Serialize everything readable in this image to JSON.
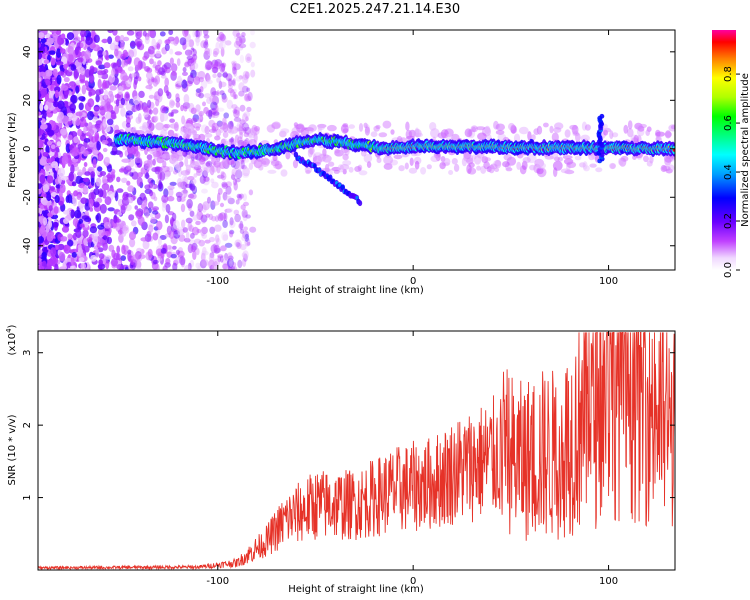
{
  "title": "C2E1.2025.247.21.14.E30",
  "chart_data": [
    {
      "type": "heatmap",
      "name": "spectrogram",
      "xlabel": "Height of straight line (km)",
      "ylabel": "Frequency (Hz)",
      "xlim": [
        -192,
        134
      ],
      "ylim": [
        -50,
        49
      ],
      "xticks": [
        -100,
        0,
        100
      ],
      "xtick_labels": [
        "-100",
        "0",
        "100"
      ],
      "yticks": [
        -40,
        -20,
        0,
        20,
        40
      ],
      "ytick_labels": [
        "-40",
        "-20",
        "0",
        "20",
        "40"
      ],
      "colorbar": {
        "label": "Normalized spectral amplitude",
        "range": [
          0,
          0.98
        ],
        "ticks": [
          0,
          0.2,
          0.4,
          0.6,
          0.8
        ],
        "tick_labels": [
          "0.0",
          "0.2",
          "0.4",
          "0.6",
          "0.8"
        ]
      },
      "features": [
        {
          "desc": "main tone",
          "x_range": [
            -152,
            134
          ],
          "freq": [
            [
              -152,
              4
            ],
            [
              -120,
              2
            ],
            [
              -90,
              -2
            ],
            [
              -70,
              0
            ],
            [
              -50,
              4
            ],
            [
              -30,
              2
            ],
            [
              -15,
              0
            ],
            [
              0,
              1
            ],
            [
              134,
              0
            ]
          ]
        },
        {
          "desc": "secondary branch",
          "x_range": [
            -60,
            -27
          ],
          "freq": [
            [
              -60,
              -3
            ],
            [
              -50,
              -8
            ],
            [
              -40,
              -14
            ],
            [
              -27,
              -22
            ]
          ]
        },
        {
          "desc": "spike",
          "x": 96,
          "freq_range": [
            -5,
            14
          ]
        }
      ]
    },
    {
      "type": "line",
      "name": "snr",
      "xlabel": "Height of straight line (km)",
      "ylabel": "SNR (10 * v/v)",
      "y_multiplier": "(x10",
      "y_multiplier_exponent": "4",
      "y_multiplier_close": ")",
      "xlim": [
        -192,
        134
      ],
      "ylim": [
        0,
        3.3
      ],
      "xticks": [
        -100,
        0,
        100
      ],
      "xtick_labels": [
        "-100",
        "0",
        "100"
      ],
      "yticks": [
        1,
        2,
        3
      ],
      "ytick_labels": [
        "1",
        "2",
        "3"
      ],
      "series": [
        {
          "name": "SNR",
          "color": "#e63228",
          "envelope": [
            [
              -192,
              0.03
            ],
            [
              -110,
              0.04
            ],
            [
              -90,
              0.1
            ],
            [
              -75,
              0.4
            ],
            [
              -65,
              0.7
            ],
            [
              -50,
              0.9
            ],
            [
              -30,
              0.9
            ],
            [
              -20,
              1.0
            ],
            [
              -10,
              1.1
            ],
            [
              0,
              1.15
            ],
            [
              10,
              1.2
            ],
            [
              20,
              1.35
            ],
            [
              30,
              1.45
            ],
            [
              40,
              1.55
            ],
            [
              48,
              1.6
            ],
            [
              55,
              1.5
            ],
            [
              65,
              1.6
            ],
            [
              75,
              1.6
            ],
            [
              85,
              2.0
            ],
            [
              95,
              2.3
            ],
            [
              100,
              2.8
            ],
            [
              110,
              2.6
            ],
            [
              120,
              2.4
            ],
            [
              134,
              1.9
            ]
          ]
        }
      ]
    }
  ]
}
